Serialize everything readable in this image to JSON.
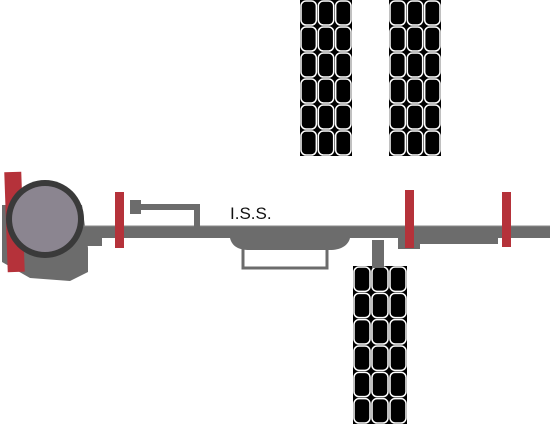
{
  "diagram": {
    "label": "I.S.S.",
    "colors": {
      "truss": "#6c6c6c",
      "truss_outline": "#8a8a8a",
      "radiator_red": "#b5323a",
      "panel_cell": "#000000",
      "panel_grid": "#ffffff",
      "module_fill": "#8b8590",
      "module_ring": "#3a3a3a",
      "text": "#111111"
    }
  }
}
